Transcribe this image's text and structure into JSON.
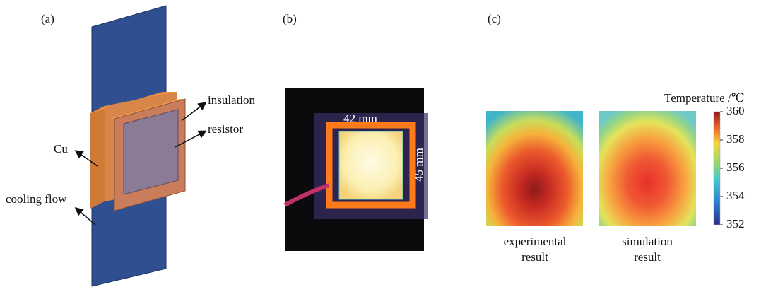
{
  "panels": [
    {
      "label": "(a)",
      "annotations": [
        "insulation",
        "resistor",
        "Cu",
        "cooling flow"
      ]
    },
    {
      "label": "(b)",
      "annotations": [
        "42 mm",
        "45 mm"
      ]
    },
    {
      "label": "(c)",
      "captions": [
        [
          "experimental",
          "result"
        ],
        [
          "simulation",
          "result"
        ]
      ]
    }
  ],
  "colorbar": {
    "title": "Temperature /℃",
    "lim": [
      352,
      360
    ],
    "ticks": [
      352,
      354,
      356,
      358,
      360
    ]
  }
}
